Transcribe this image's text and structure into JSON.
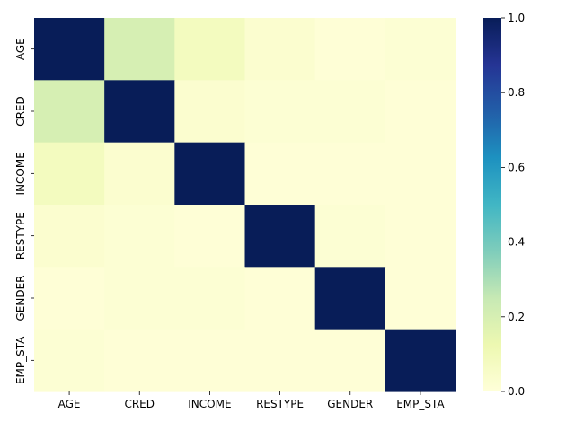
{
  "chart_data": {
    "type": "heatmap",
    "title": "",
    "xlabel": "",
    "ylabel": "",
    "x_labels": [
      "AGE",
      "CRED",
      "INCOME",
      "RESTYPE",
      "GENDER",
      "EMP_STA"
    ],
    "y_labels": [
      "AGE",
      "CRED",
      "INCOME",
      "RESTYPE",
      "GENDER",
      "EMP_STA"
    ],
    "values": [
      [
        1.0,
        0.2,
        0.08,
        0.03,
        0.01,
        0.02
      ],
      [
        0.2,
        1.0,
        0.03,
        0.02,
        0.02,
        0.01
      ],
      [
        0.08,
        0.03,
        1.0,
        0.01,
        0.01,
        0.01
      ],
      [
        0.03,
        0.02,
        0.01,
        1.0,
        0.02,
        0.01
      ],
      [
        0.01,
        0.02,
        0.02,
        0.01,
        1.0,
        0.01
      ],
      [
        0.02,
        0.01,
        0.01,
        0.01,
        0.01,
        1.0
      ]
    ],
    "colorbar": {
      "min": 0.0,
      "max": 1.0,
      "ticks": [
        "0.0",
        "0.2",
        "0.4",
        "0.6",
        "0.8",
        "1.0"
      ],
      "colormap": "YlGnBu"
    },
    "grid": false,
    "legend": "colorbar-right"
  }
}
